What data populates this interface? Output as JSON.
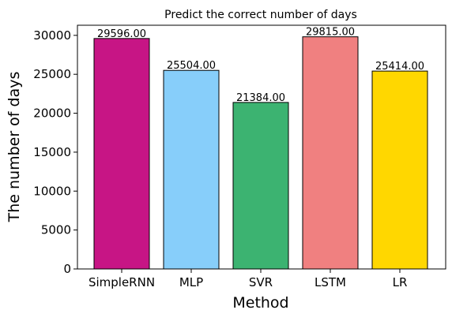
{
  "chart_data": {
    "type": "bar",
    "title": "Predict the correct number of days",
    "xlabel": "Method",
    "ylabel": "The number of days",
    "categories": [
      "SimpleRNN",
      "MLP",
      "SVR",
      "LSTM",
      "LR"
    ],
    "values": [
      29596,
      25504,
      21384,
      29815,
      25414
    ],
    "value_labels": [
      "29596.00",
      "25504.00",
      "21384.00",
      "29815.00",
      "25414.00"
    ],
    "colors": [
      "#C71585",
      "#87CEFA",
      "#3CB371",
      "#F08080",
      "#FFD700"
    ],
    "ylim": [
      0,
      31300
    ],
    "yticks": [
      0,
      5000,
      10000,
      15000,
      20000,
      25000,
      30000
    ],
    "grid": false,
    "legend": "none"
  }
}
